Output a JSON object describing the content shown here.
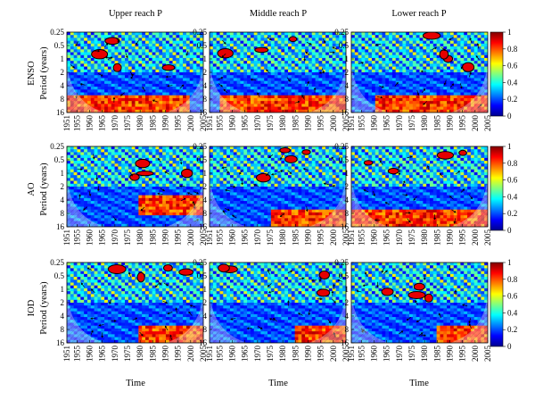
{
  "column_titles": [
    "Upper reach P",
    "Middle reach P",
    "Lower reach P"
  ],
  "row_labels": [
    "ENSO",
    "AO",
    "IOD"
  ],
  "ylabel": "Period (years)",
  "xlabel": "Time",
  "colorbar": {
    "ticks": [
      "1",
      "0.8",
      "0.6",
      "0.4",
      "0.2",
      "0"
    ]
  },
  "chart_data": {
    "type": "heatmap",
    "title": "",
    "xlabel": "Time",
    "ylabel": "Period (years)",
    "x_ticks": [
      "1951",
      "1955",
      "1960",
      "1965",
      "1970",
      "1975",
      "1980",
      "1985",
      "1990",
      "1995",
      "2000",
      "2005"
    ],
    "y_ticks": [
      "0.25",
      "0.5",
      "1",
      "2",
      "4",
      "8",
      "16"
    ],
    "y_scale": "log2",
    "color_range": [
      0,
      1
    ],
    "colormap": [
      "#00008f",
      "#0000ff",
      "#0080ff",
      "#00ffff",
      "#80ff80",
      "#ffff00",
      "#ff8000",
      "#ff0000",
      "#800000"
    ],
    "panels": [
      {
        "row": "ENSO",
        "column": "Upper reach P",
        "high_band_years": [
          8,
          16
        ],
        "high_band_span": [
          1951,
          2000
        ]
      },
      {
        "row": "ENSO",
        "column": "Middle reach P",
        "high_band_years": [
          8,
          16
        ],
        "high_band_span": [
          1955,
          2005
        ]
      },
      {
        "row": "ENSO",
        "column": "Lower reach P",
        "high_band_years": [
          8,
          16
        ],
        "high_band_span": [
          1960,
          2005
        ]
      },
      {
        "row": "AO",
        "column": "Upper reach P",
        "high_band_years": [
          4,
          8
        ],
        "high_band_span": [
          1980,
          2005
        ]
      },
      {
        "row": "AO",
        "column": "Middle reach P",
        "high_band_years": [
          8,
          16
        ],
        "high_band_span": [
          1975,
          2005
        ]
      },
      {
        "row": "AO",
        "column": "Lower reach P",
        "high_band_years": [
          8,
          16
        ],
        "high_band_span": [
          1951,
          2005
        ]
      },
      {
        "row": "IOD",
        "column": "Upper reach P",
        "high_band_years": [
          8,
          16
        ],
        "high_band_span": [
          1980,
          2005
        ]
      },
      {
        "row": "IOD",
        "column": "Middle reach P",
        "high_band_years": [
          8,
          16
        ],
        "high_band_span": [
          1985,
          2005
        ]
      },
      {
        "row": "IOD",
        "column": "Lower reach P",
        "high_band_years": [
          8,
          16
        ],
        "high_band_span": [
          1985,
          2005
        ]
      }
    ]
  }
}
